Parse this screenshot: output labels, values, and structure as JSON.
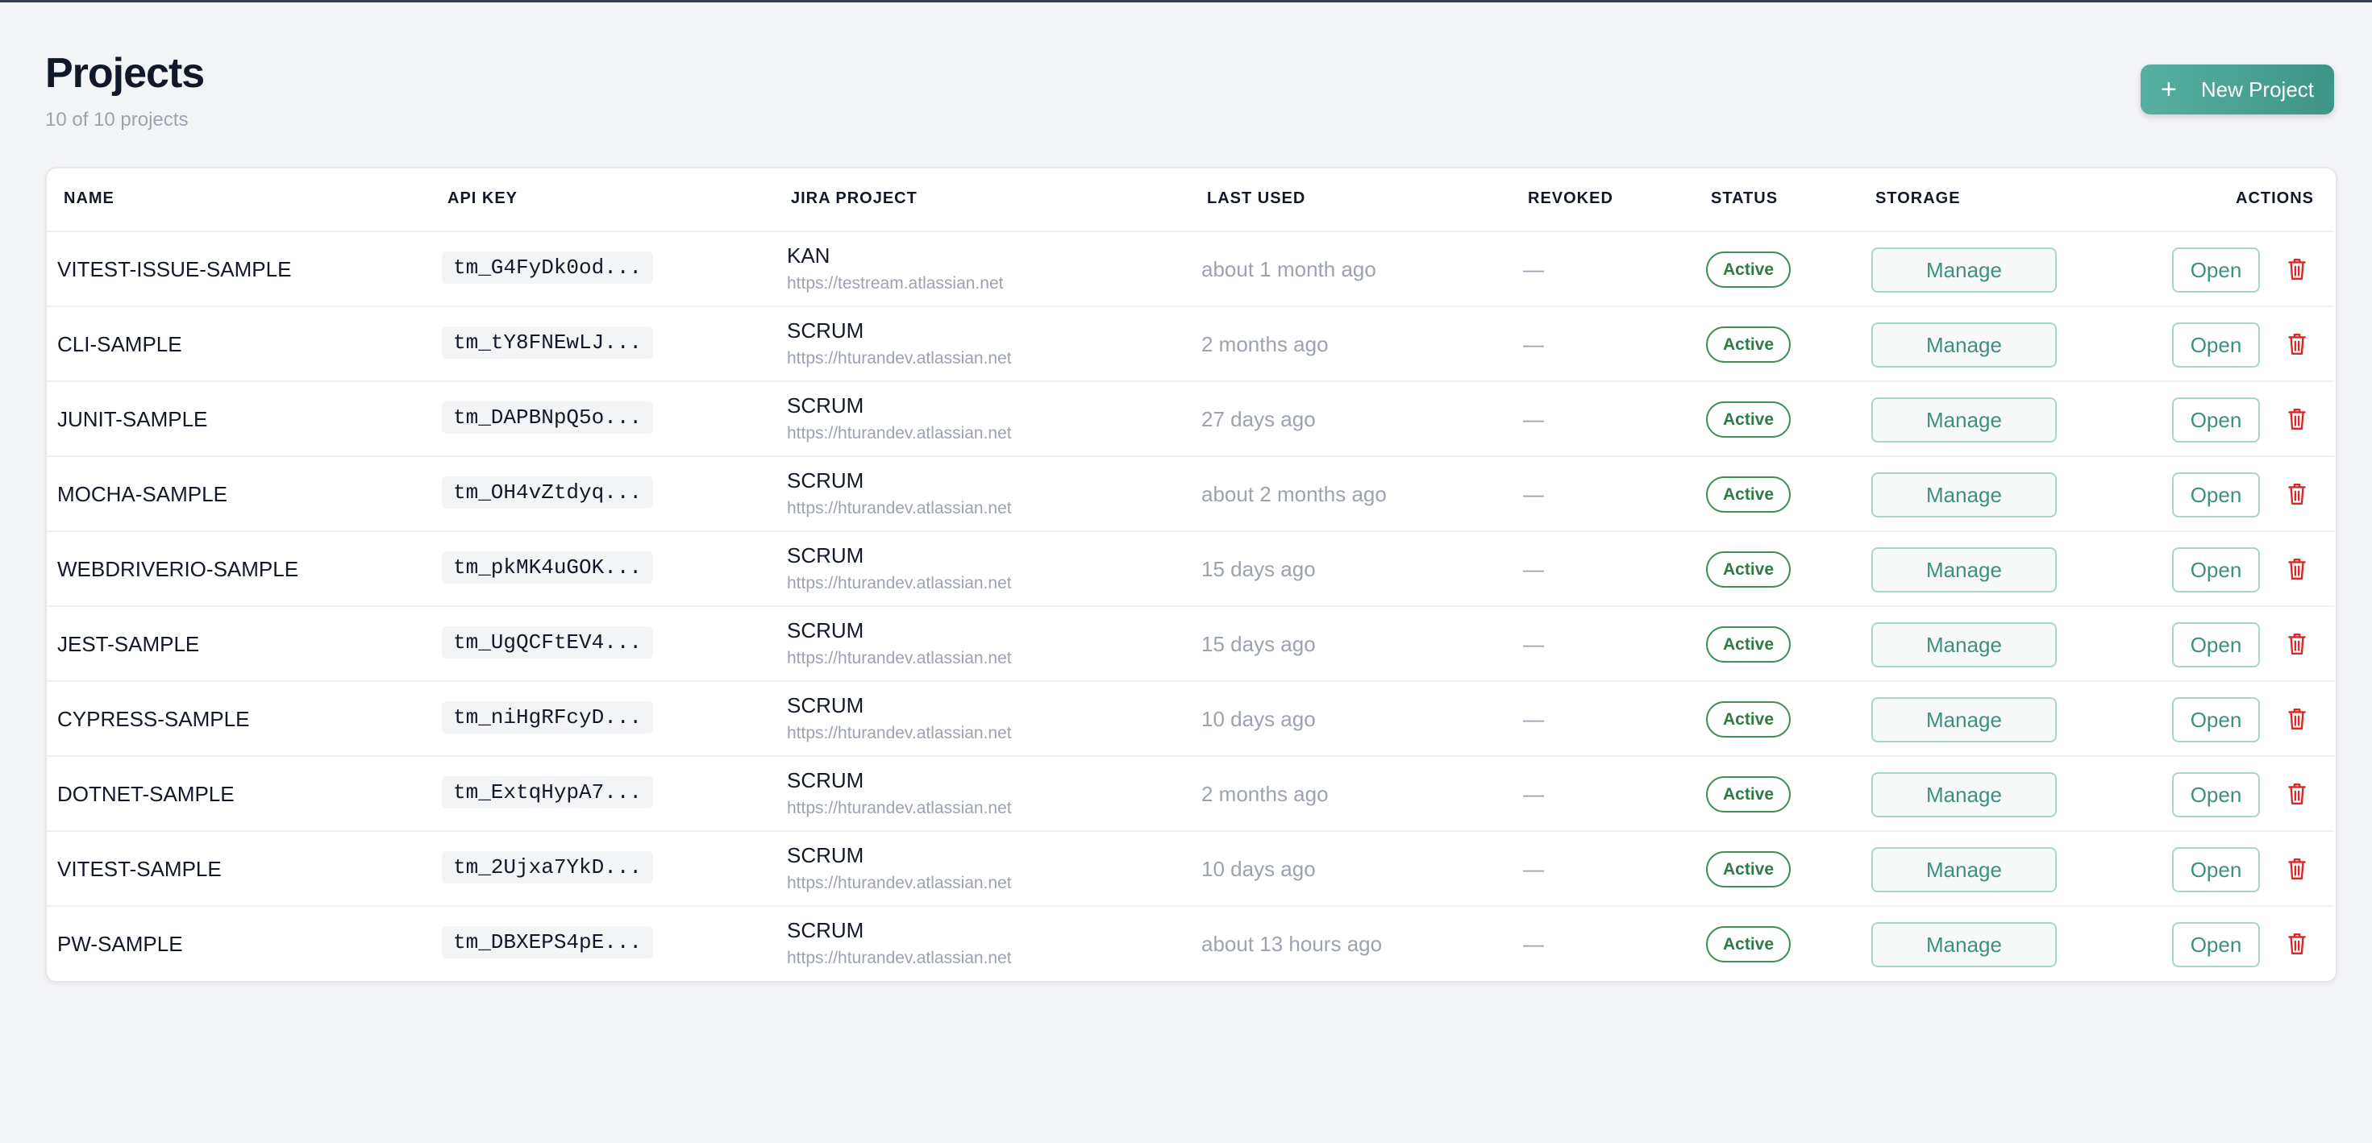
{
  "header": {
    "title": "Projects",
    "subtitle": "10 of 10 projects",
    "new_button": "New Project"
  },
  "table": {
    "columns": [
      "NAME",
      "API KEY",
      "JIRA PROJECT",
      "LAST USED",
      "REVOKED",
      "STATUS",
      "STORAGE",
      "ACTIONS"
    ],
    "actions": {
      "manage": "Manage",
      "open": "Open"
    },
    "rows": [
      {
        "name": "VITEST-ISSUE-SAMPLE",
        "api_key": "tm_G4FyDk0od...",
        "jira_key": "KAN",
        "jira_url": "https://testream.atlassian.net",
        "last_used": "about 1 month ago",
        "revoked": "—",
        "status": "Active"
      },
      {
        "name": "CLI-SAMPLE",
        "api_key": "tm_tY8FNEwLJ...",
        "jira_key": "SCRUM",
        "jira_url": "https://hturandev.atlassian.net",
        "last_used": "2 months ago",
        "revoked": "—",
        "status": "Active"
      },
      {
        "name": "JUNIT-SAMPLE",
        "api_key": "tm_DAPBNpQ5o...",
        "jira_key": "SCRUM",
        "jira_url": "https://hturandev.atlassian.net",
        "last_used": "27 days ago",
        "revoked": "—",
        "status": "Active"
      },
      {
        "name": "MOCHA-SAMPLE",
        "api_key": "tm_OH4vZtdyq...",
        "jira_key": "SCRUM",
        "jira_url": "https://hturandev.atlassian.net",
        "last_used": "about 2 months ago",
        "revoked": "—",
        "status": "Active"
      },
      {
        "name": "WEBDRIVERIO-SAMPLE",
        "api_key": "tm_pkMK4uGOK...",
        "jira_key": "SCRUM",
        "jira_url": "https://hturandev.atlassian.net",
        "last_used": "15 days ago",
        "revoked": "—",
        "status": "Active"
      },
      {
        "name": "JEST-SAMPLE",
        "api_key": "tm_UgQCFtEV4...",
        "jira_key": "SCRUM",
        "jira_url": "https://hturandev.atlassian.net",
        "last_used": "15 days ago",
        "revoked": "—",
        "status": "Active"
      },
      {
        "name": "CYPRESS-SAMPLE",
        "api_key": "tm_niHgRFcyD...",
        "jira_key": "SCRUM",
        "jira_url": "https://hturandev.atlassian.net",
        "last_used": "10 days ago",
        "revoked": "—",
        "status": "Active"
      },
      {
        "name": "DOTNET-SAMPLE",
        "api_key": "tm_ExtqHypA7...",
        "jira_key": "SCRUM",
        "jira_url": "https://hturandev.atlassian.net",
        "last_used": "2 months ago",
        "revoked": "—",
        "status": "Active"
      },
      {
        "name": "VITEST-SAMPLE",
        "api_key": "tm_2Ujxa7YkD...",
        "jira_key": "SCRUM",
        "jira_url": "https://hturandev.atlassian.net",
        "last_used": "10 days ago",
        "revoked": "—",
        "status": "Active"
      },
      {
        "name": "PW-SAMPLE",
        "api_key": "tm_DBXEPS4pE...",
        "jira_key": "SCRUM",
        "jira_url": "https://hturandev.atlassian.net",
        "last_used": "about 13 hours ago",
        "revoked": "—",
        "status": "Active"
      }
    ]
  }
}
